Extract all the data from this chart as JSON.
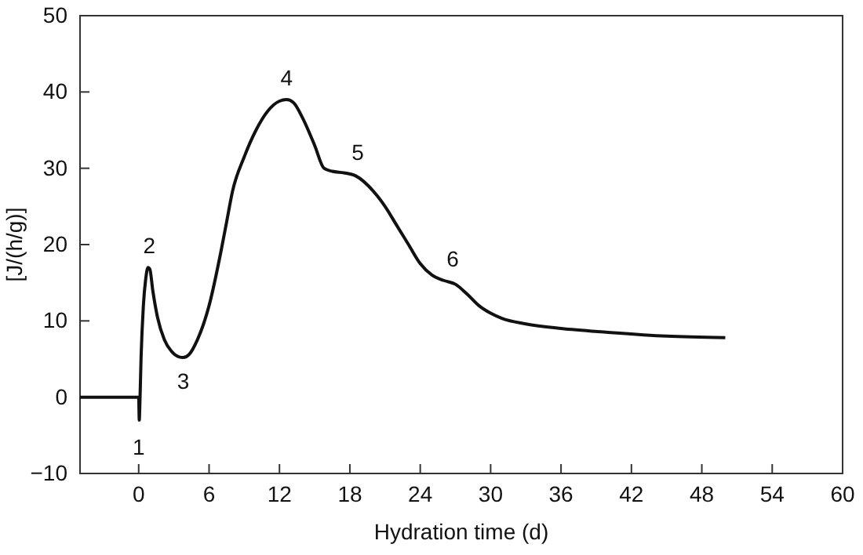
{
  "chart_data": {
    "type": "line",
    "xlabel": "Hydration time (d)",
    "ylabel": "[J/(h/g)]",
    "xlim": [
      -5,
      60
    ],
    "ylim": [
      -10,
      50
    ],
    "xticks": [
      0,
      6,
      12,
      18,
      24,
      30,
      36,
      42,
      48,
      54,
      60
    ],
    "yticks": [
      {
        "value": -10,
        "label": "−10"
      },
      0,
      10,
      20,
      30,
      40,
      50
    ],
    "grid": false,
    "marker": "none",
    "line_style": "solid",
    "series": [
      {
        "color": "#111111",
        "x": [
          -5,
          -1,
          0,
          0.05,
          0.1,
          0.2,
          0.4,
          0.6,
          0.8,
          0.95,
          1.2,
          1.6,
          2.2,
          2.8,
          3.4,
          3.8,
          4.3,
          5,
          6,
          7,
          7.5,
          8,
          9,
          10,
          11,
          12,
          12.6,
          13.2,
          14,
          15,
          15.8,
          16.5,
          17.5,
          18.5,
          20,
          21,
          22,
          23,
          24,
          25,
          26,
          27,
          28,
          29,
          30,
          31,
          33,
          36,
          40,
          45,
          50
        ],
        "values": [
          0,
          0,
          0,
          -3,
          -1,
          5,
          12,
          15.5,
          17,
          16.8,
          14,
          10.5,
          7.5,
          6,
          5.3,
          5.2,
          5.6,
          7.5,
          12,
          19,
          23,
          27,
          31.5,
          35,
          37.5,
          38.8,
          39,
          38.6,
          36.5,
          33,
          30,
          29.6,
          29.4,
          29,
          27,
          25,
          22.5,
          20,
          17.5,
          16,
          15.3,
          14.8,
          13.5,
          12,
          11,
          10.3,
          9.6,
          9,
          8.5,
          8,
          7.8
        ]
      }
    ],
    "annotations": [
      {
        "text": "1",
        "x": 0,
        "y": -3
      },
      {
        "text": "2",
        "x": 0.9,
        "y": 17
      },
      {
        "text": "3",
        "x": 3.8,
        "y": 5.2
      },
      {
        "text": "4",
        "x": 12.6,
        "y": 39
      },
      {
        "text": "5",
        "x": 18,
        "y": 29.2
      },
      {
        "text": "6",
        "x": 26.5,
        "y": 15.3
      }
    ]
  }
}
